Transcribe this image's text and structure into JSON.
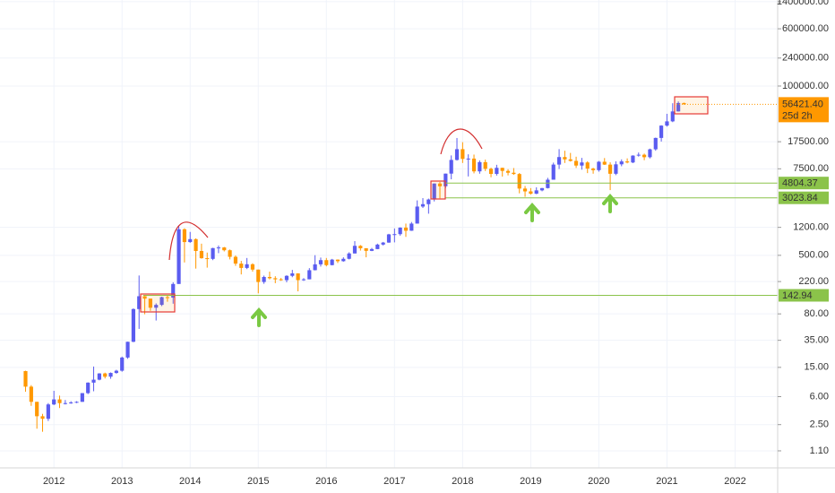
{
  "chart_data": {
    "type": "candlestick",
    "log_scale": true,
    "grid": true,
    "up_color": "#5a5cf0",
    "down_color": "#ff9800",
    "hline_color": "#8bc34a",
    "last_price_color": "#ff9800",
    "ylim": [
      0.645,
      1477000
    ],
    "yticks": [
      {
        "value": 1400000,
        "label": "1400000.00"
      },
      {
        "value": 600000,
        "label": "600000.00"
      },
      {
        "value": 240000,
        "label": "240000.00"
      },
      {
        "value": 100000,
        "label": "100000.00"
      },
      {
        "value": 17500,
        "label": "17500.00"
      },
      {
        "value": 7500,
        "label": "7500.00"
      },
      {
        "value": 1200,
        "label": "1200.00"
      },
      {
        "value": 500,
        "label": "500.00"
      },
      {
        "value": 220,
        "label": "220.00"
      },
      {
        "value": 80,
        "label": "80.00"
      },
      {
        "value": 35,
        "label": "35.00"
      },
      {
        "value": 15,
        "label": "15.00"
      },
      {
        "value": 6,
        "label": "6.00"
      },
      {
        "value": 2.5,
        "label": "2.50"
      },
      {
        "value": 1.1,
        "label": "1.10"
      }
    ],
    "hlines": [
      142.94,
      3023.84,
      4804.37
    ],
    "last_price": {
      "value": 56421.4,
      "label": "56421.40"
    },
    "countdown": "25d 2h",
    "categories": [
      null,
      null,
      null,
      null,
      null,
      null,
      null,
      null,
      null,
      "2012",
      null,
      null,
      null,
      null,
      null,
      null,
      null,
      null,
      null,
      null,
      null,
      "2013",
      null,
      null,
      null,
      null,
      null,
      null,
      null,
      null,
      null,
      null,
      null,
      "2014",
      null,
      null,
      null,
      null,
      null,
      null,
      null,
      null,
      null,
      null,
      null,
      "2015",
      null,
      null,
      null,
      null,
      null,
      null,
      null,
      null,
      null,
      null,
      null,
      "2016",
      null,
      null,
      null,
      null,
      null,
      null,
      null,
      null,
      null,
      null,
      null,
      "2017",
      null,
      null,
      null,
      null,
      null,
      null,
      null,
      null,
      null,
      null,
      null,
      "2018",
      null,
      null,
      null,
      null,
      null,
      null,
      null,
      null,
      null,
      null,
      null,
      "2019",
      null,
      null,
      null,
      null,
      null,
      null,
      null,
      null,
      null,
      null,
      null,
      "2020",
      null,
      null,
      null,
      null,
      null,
      null,
      null,
      null,
      null,
      null,
      null,
      "2021",
      null,
      null,
      null,
      null,
      null,
      null,
      null,
      null,
      null,
      null,
      null,
      "2022",
      null,
      null,
      null,
      null,
      null,
      null,
      null
    ],
    "open": [
      null,
      null,
      null,
      null,
      13.35,
      8.2,
      5.1,
      3.25,
      3.0,
      4.7,
      5.5,
      4.9,
      4.9,
      5.0,
      5.1,
      6.7,
      9.3,
      10.2,
      12.4,
      11.2,
      12.6,
      13.5,
      20.4,
      33.4,
      93,
      139,
      129,
      97,
      106,
      135,
      133,
      204,
      1130,
      757,
      830,
      573,
      457,
      447,
      627,
      640,
      586,
      477,
      386,
      337,
      378,
      320,
      217,
      254,
      244,
      236,
      230,
      263,
      284,
      230,
      236,
      314,
      377,
      430,
      368,
      437,
      416,
      448,
      530,
      673,
      624,
      575,
      608,
      700,
      745,
      963,
      970,
      1190,
      1080,
      1350,
      2300,
      2480,
      2870,
      4730,
      4340,
      6450,
      9900,
      13860,
      10220,
      10320,
      6920,
      9240,
      7500,
      6390,
      7730,
      7020,
      6630,
      6370,
      4040,
      3700,
      3440,
      3820,
      4100,
      5330,
      8560,
      10830,
      10080,
      9600,
      8300,
      9150,
      7550,
      7190,
      9350,
      8550,
      6420,
      8630,
      9450,
      9140,
      11340,
      11650,
      10780,
      13800,
      19700,
      28990,
      33100,
      45160,
      58800,
      null,
      null,
      null,
      null,
      null,
      null,
      null,
      null,
      null,
      null,
      null,
      null,
      null,
      null,
      null,
      null
    ],
    "high": [
      null,
      null,
      null,
      null,
      13.5,
      8.6,
      5.1,
      3.5,
      4.9,
      7.2,
      6.2,
      5.4,
      5.2,
      5.2,
      6.7,
      9.4,
      15.4,
      12.5,
      12.7,
      12.8,
      13.9,
      21,
      33.5,
      95,
      266,
      140,
      129,
      111,
      137,
      141,
      215,
      1240,
      1165,
      1040,
      850,
      720,
      545,
      633,
      680,
      650,
      600,
      498,
      420,
      460,
      390,
      320,
      265,
      300,
      260,
      246,
      268,
      317,
      285,
      245,
      335,
      502,
      466,
      460,
      447,
      440,
      470,
      550,
      780,
      690,
      625,
      630,
      720,
      760,
      980,
      1160,
      1200,
      1350,
      1420,
      2790,
      3000,
      2950,
      4750,
      4980,
      6450,
      11400,
      19660,
      17250,
      11800,
      11700,
      9750,
      9990,
      7780,
      8500,
      7760,
      7410,
      7680,
      6570,
      4380,
      4100,
      4200,
      4120,
      5650,
      9100,
      13880,
      13200,
      12330,
      10950,
      10550,
      9500,
      7750,
      9580,
      10500,
      9190,
      9470,
      10070,
      10390,
      11450,
      12480,
      12070,
      14100,
      19900,
      29300,
      41950,
      58350,
      61780,
      59500,
      null,
      null,
      null,
      null,
      null,
      null,
      null,
      null,
      null,
      null,
      null,
      null,
      null,
      null,
      null,
      null
    ],
    "low": [
      null,
      null,
      null,
      null,
      7.0,
      4.5,
      2.2,
      2.0,
      2.8,
      4.6,
      4.2,
      4.7,
      4.8,
      4.9,
      5.1,
      6.5,
      7.1,
      10.0,
      10.6,
      10.5,
      12.3,
      13.1,
      19.6,
      33,
      50,
      79,
      88,
      65,
      102,
      117,
      110,
      205,
      400,
      740,
      330,
      450,
      340,
      430,
      535,
      565,
      440,
      360,
      275,
      325,
      300,
      152,
      205,
      235,
      209,
      225,
      215,
      252,
      162,
      225,
      236,
      312,
      352,
      354,
      365,
      393,
      410,
      440,
      530,
      580,
      470,
      570,
      605,
      680,
      740,
      750,
      925,
      890,
      1075,
      1350,
      2200,
      1840,
      2700,
      2970,
      4110,
      5400,
      9700,
      9000,
      5900,
      6500,
      6430,
      7000,
      5750,
      6070,
      5880,
      6100,
      6200,
      3480,
      3120,
      3350,
      3390,
      3710,
      4050,
      5330,
      7450,
      9000,
      9400,
      7700,
      7300,
      6550,
      6430,
      6860,
      8460,
      3850,
      6150,
      8120,
      8900,
      8960,
      10980,
      9820,
      10380,
      13200,
      17600,
      28100,
      32300,
      44950,
      56000,
      null,
      null,
      null,
      null,
      null,
      null,
      null,
      null,
      null,
      null,
      null,
      null,
      null,
      null,
      null,
      null
    ],
    "close": [
      null,
      null,
      null,
      null,
      8.2,
      5.1,
      3.25,
      3.0,
      4.7,
      5.5,
      4.9,
      4.9,
      5.0,
      5.1,
      6.7,
      9.3,
      10.2,
      12.4,
      11.2,
      12.6,
      13.5,
      20.4,
      33.4,
      93,
      139,
      129,
      97,
      106,
      135,
      133,
      204,
      1130,
      757,
      830,
      573,
      457,
      447,
      627,
      640,
      586,
      477,
      386,
      337,
      378,
      320,
      217,
      254,
      244,
      236,
      230,
      263,
      284,
      230,
      236,
      314,
      377,
      430,
      368,
      437,
      416,
      448,
      530,
      673,
      624,
      575,
      608,
      700,
      745,
      963,
      970,
      1190,
      1080,
      1350,
      2300,
      2480,
      2870,
      4730,
      4340,
      6450,
      9900,
      13860,
      10220,
      10320,
      6920,
      9240,
      7500,
      6390,
      7730,
      7020,
      6630,
      6370,
      4040,
      3700,
      3440,
      3820,
      4100,
      5330,
      8560,
      10830,
      10080,
      9600,
      8300,
      9150,
      7550,
      7190,
      9350,
      8550,
      6420,
      8630,
      9450,
      9140,
      11340,
      11650,
      10780,
      13800,
      19700,
      28990,
      33100,
      45160,
      58800,
      56421.4,
      null,
      null,
      null,
      null,
      null,
      null,
      null,
      null,
      null,
      null,
      null,
      null,
      null,
      null,
      null,
      null
    ]
  }
}
